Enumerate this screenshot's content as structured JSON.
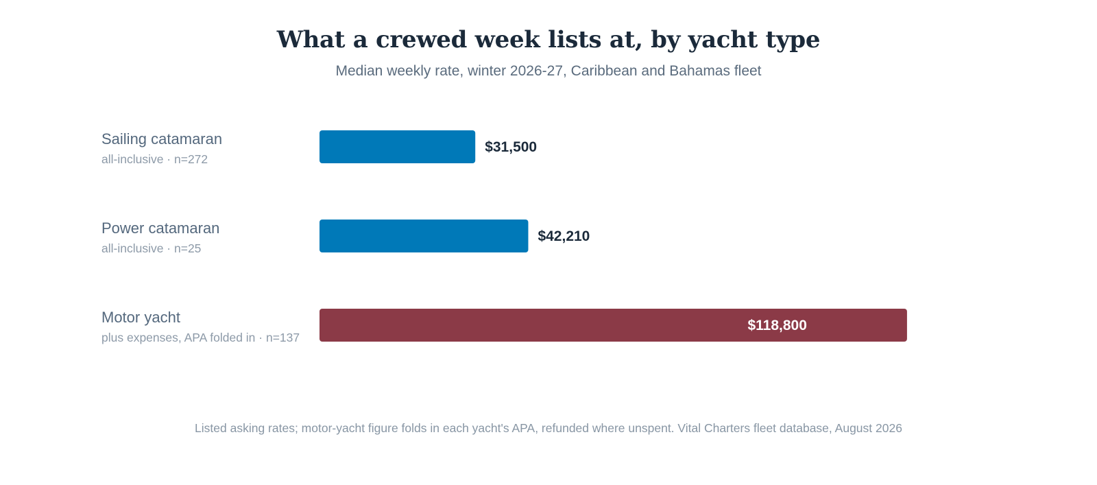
{
  "chart_data": {
    "type": "bar",
    "orientation": "horizontal",
    "title": "What a crewed week lists at, by yacht type",
    "subtitle": "Median weekly rate, winter 2026-27, Caribbean and Bahamas fleet",
    "categories": [
      "Sailing catamaran",
      "Power catamaran",
      "Motor yacht"
    ],
    "category_notes": [
      "all-inclusive · n=272",
      "all-inclusive · n=25",
      "plus expenses, APA folded in · n=137"
    ],
    "values": [
      31500,
      42210,
      118800
    ],
    "value_labels": [
      "$31,500",
      "$42,210",
      "$118,800"
    ],
    "bar_colors": [
      "#0079b8",
      "#0079b8",
      "#8b3a47"
    ],
    "xlim": [
      0,
      122000
    ],
    "grid": false,
    "legend": "none",
    "footnote": "Listed asking rates; motor-yacht figure folds in each yacht's APA, refunded where unspent. Vital Charters fleet database, August 2026"
  }
}
